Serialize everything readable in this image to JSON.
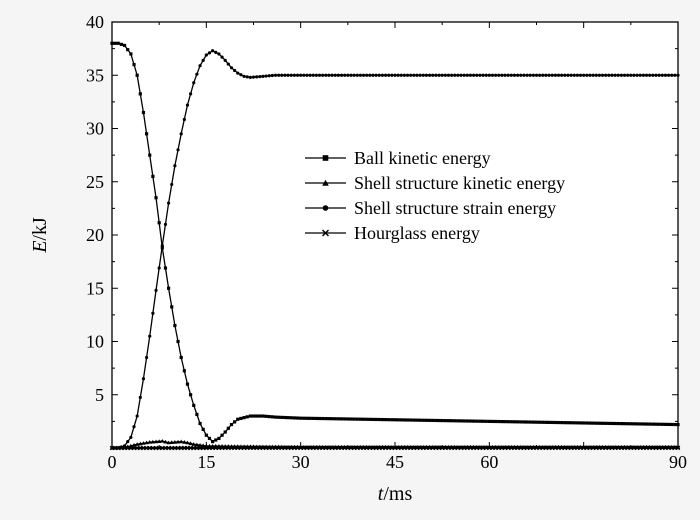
{
  "chart_data": {
    "type": "line",
    "xlabel_var": "t",
    "xlabel_unit": "/ms",
    "ylabel_var": "E",
    "ylabel_unit": "/kJ",
    "xlim": [
      0,
      90
    ],
    "ylim": [
      0,
      40
    ],
    "x_ticks": [
      "0",
      "15",
      "30",
      "45",
      "60",
      "90"
    ],
    "x_tick_values": [
      0,
      15,
      30,
      45,
      60,
      90
    ],
    "y_ticks": [
      "5",
      "10",
      "15",
      "20",
      "25",
      "30",
      "35",
      "40"
    ],
    "y_tick_values": [
      5,
      10,
      15,
      20,
      25,
      30,
      35,
      40
    ],
    "grid": false,
    "legend_position": "upper-right",
    "series": [
      {
        "name": "Ball kinetic energy",
        "marker": "square",
        "x": [
          0,
          1,
          2,
          3,
          4,
          5,
          6,
          7,
          8,
          9,
          10,
          11,
          12,
          13,
          14,
          15,
          16,
          17,
          18,
          19,
          20,
          22,
          24,
          26,
          30,
          40,
          50,
          60,
          70,
          80,
          90
        ],
        "y": [
          38.0,
          38.0,
          37.8,
          37.0,
          35.0,
          31.5,
          27.5,
          23.5,
          18.8,
          15.0,
          11.5,
          8.5,
          6.0,
          4.0,
          2.3,
          1.2,
          0.6,
          0.9,
          1.5,
          2.2,
          2.7,
          3.0,
          3.0,
          2.9,
          2.8,
          2.7,
          2.6,
          2.5,
          2.4,
          2.3,
          2.2
        ]
      },
      {
        "name": "Shell structure kinetic energy",
        "marker": "triangle",
        "x": [
          0,
          2,
          3,
          4,
          5,
          6,
          7,
          8,
          9,
          10,
          11,
          12,
          13,
          15,
          20,
          30,
          45,
          60,
          75,
          90
        ],
        "y": [
          0.0,
          0.05,
          0.2,
          0.35,
          0.45,
          0.55,
          0.6,
          0.65,
          0.5,
          0.55,
          0.6,
          0.5,
          0.35,
          0.2,
          0.15,
          0.1,
          0.1,
          0.1,
          0.1,
          0.1
        ]
      },
      {
        "name": "Shell structure strain energy",
        "marker": "circle",
        "x": [
          0,
          1,
          2,
          3,
          4,
          5,
          6,
          7,
          8,
          9,
          10,
          11,
          12,
          13,
          14,
          15,
          16,
          17,
          18,
          19,
          20,
          21,
          22,
          23,
          24,
          26,
          30,
          40,
          50,
          60,
          70,
          80,
          90
        ],
        "y": [
          0.0,
          0.0,
          0.2,
          1.0,
          3.0,
          6.5,
          10.5,
          14.8,
          19.0,
          23.0,
          26.5,
          29.5,
          32.2,
          34.3,
          35.9,
          36.9,
          37.3,
          37.0,
          36.4,
          35.7,
          35.2,
          34.9,
          34.8,
          34.85,
          34.9,
          35.0,
          35.0,
          35.0,
          35.0,
          35.0,
          35.0,
          35.0,
          35.0
        ]
      },
      {
        "name": "Hourglass energy",
        "marker": "x",
        "x": [
          0,
          10,
          20,
          30,
          45,
          60,
          75,
          90
        ],
        "y": [
          0,
          0,
          0.02,
          0.02,
          0.02,
          0.02,
          0.02,
          0.02
        ]
      }
    ]
  }
}
